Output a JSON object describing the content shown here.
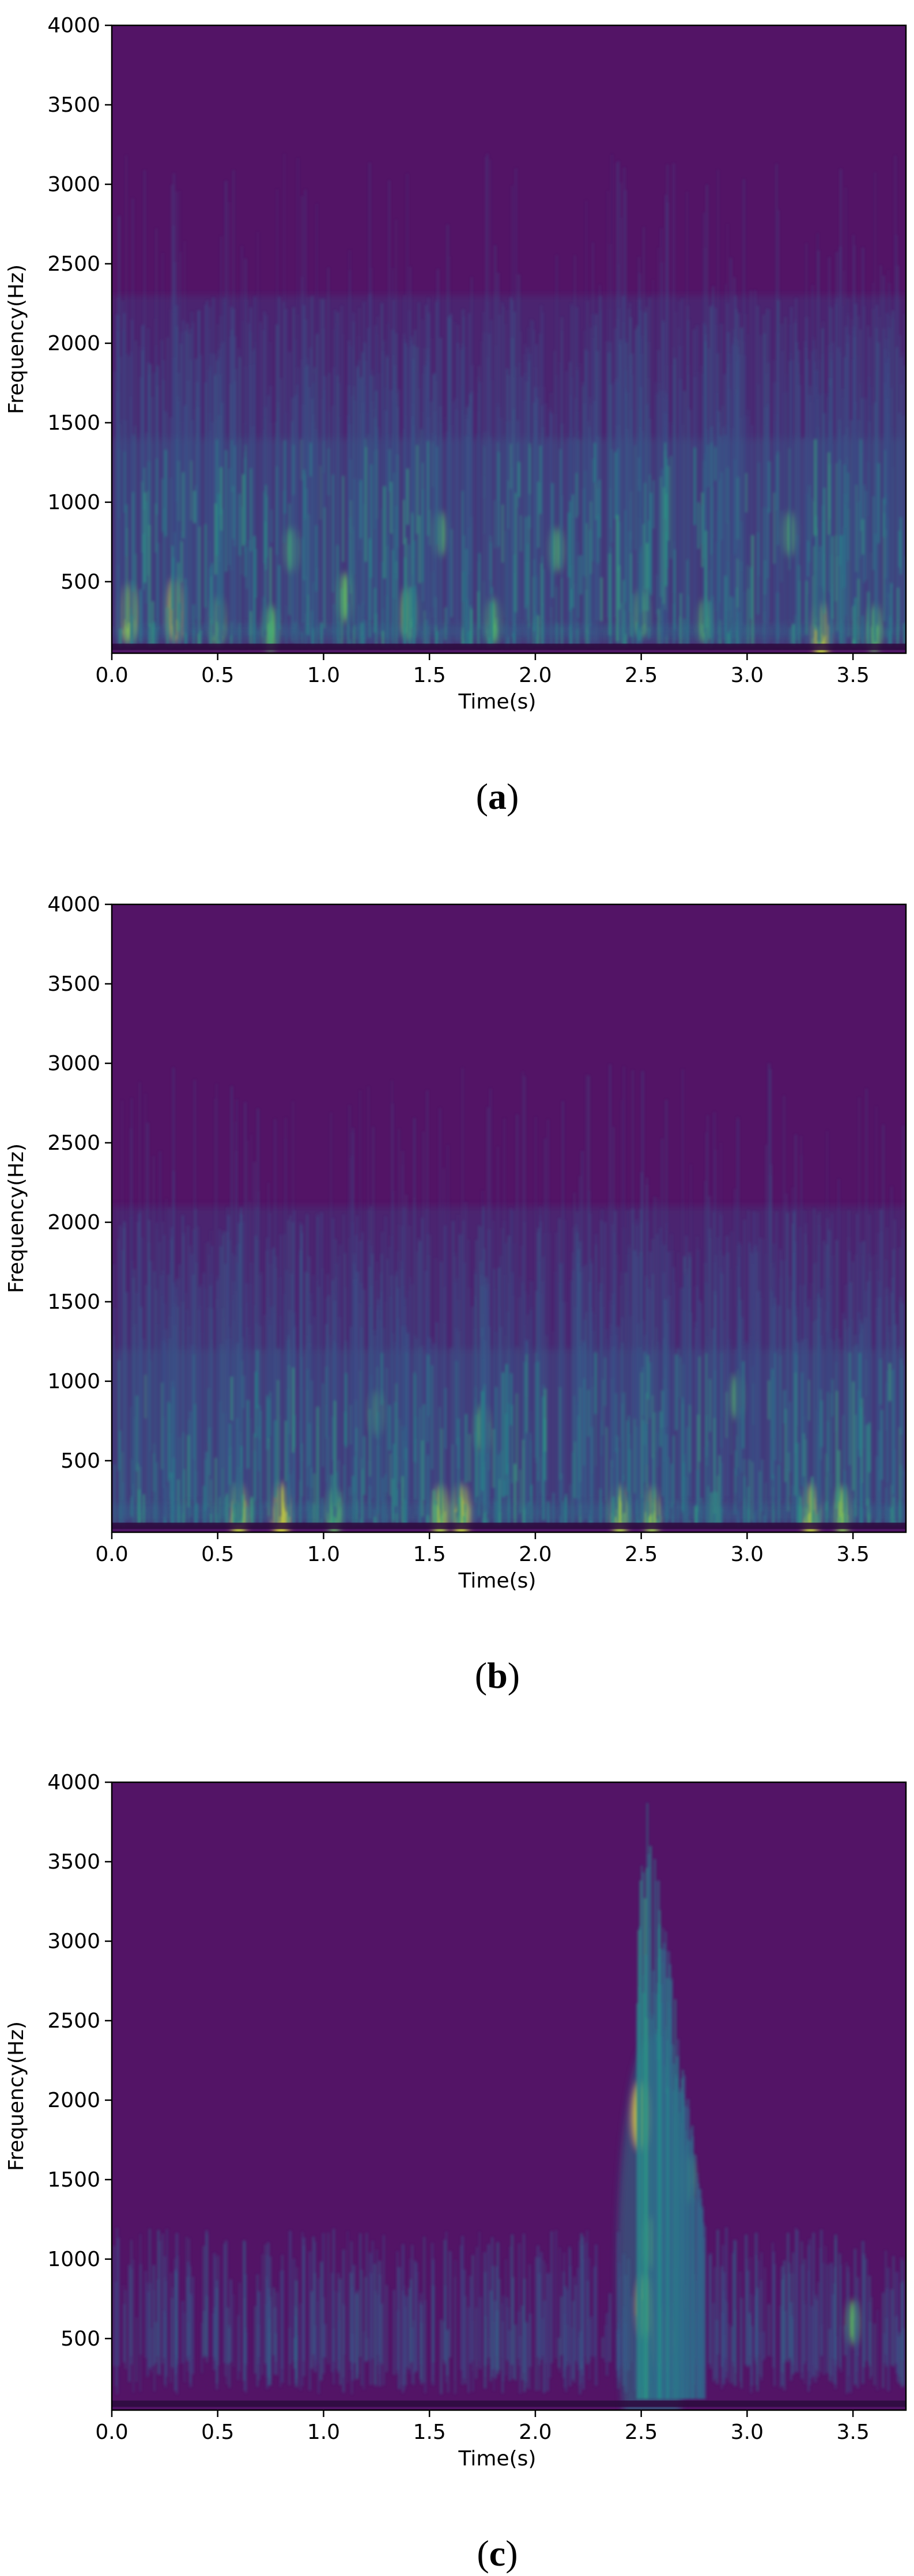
{
  "chart_data": [
    {
      "type": "heatmap",
      "panel_label": "a",
      "xlabel": "Time(s)",
      "ylabel": "Frequency(Hz)",
      "xlim": [
        0,
        3.75
      ],
      "ylim": [
        50,
        4000
      ],
      "x_ticks": [
        0.0,
        0.5,
        1.0,
        1.5,
        2.0,
        2.5,
        3.0,
        3.5
      ],
      "x_tick_labels": [
        "0.0",
        "0.5",
        "1.0",
        "1.5",
        "2.0",
        "2.5",
        "3.0",
        "3.5"
      ],
      "y_ticks": [
        500,
        1000,
        1500,
        2000,
        2500,
        3000,
        3500,
        4000
      ],
      "y_tick_labels": [
        "500",
        "1000",
        "1500",
        "2000",
        "2500",
        "3000",
        "3500",
        "4000"
      ],
      "colormap": "viridis",
      "background_color": "#531466",
      "energy_profile": {
        "description_of_mode": "broadband",
        "upper_extent_hz": 2300,
        "strong_band_hz": [
          150,
          1400
        ],
        "bright_spots": [
          {
            "t": 0.08,
            "f": 300,
            "i": 0.8
          },
          {
            "t": 0.3,
            "f": 320,
            "i": 0.9
          },
          {
            "t": 0.5,
            "f": 250,
            "i": 0.6
          },
          {
            "t": 0.75,
            "f": 200,
            "i": 0.55
          },
          {
            "t": 0.85,
            "f": 700,
            "i": 0.5
          },
          {
            "t": 1.1,
            "f": 400,
            "i": 0.6
          },
          {
            "t": 1.4,
            "f": 300,
            "i": 0.65
          },
          {
            "t": 1.55,
            "f": 800,
            "i": 0.5
          },
          {
            "t": 1.8,
            "f": 250,
            "i": 0.55
          },
          {
            "t": 2.1,
            "f": 700,
            "i": 0.5
          },
          {
            "t": 2.5,
            "f": 300,
            "i": 0.55
          },
          {
            "t": 2.8,
            "f": 250,
            "i": 0.5
          },
          {
            "t": 3.2,
            "f": 800,
            "i": 0.5
          },
          {
            "t": 3.35,
            "f": 170,
            "i": 0.85
          },
          {
            "t": 3.6,
            "f": 200,
            "i": 0.6
          }
        ]
      }
    },
    {
      "type": "heatmap",
      "panel_label": "b",
      "xlabel": "Time(s)",
      "ylabel": "Frequency(Hz)",
      "xlim": [
        0,
        3.75
      ],
      "ylim": [
        50,
        4000
      ],
      "x_ticks": [
        0.0,
        0.5,
        1.0,
        1.5,
        2.0,
        2.5,
        3.0,
        3.5
      ],
      "x_tick_labels": [
        "0.0",
        "0.5",
        "1.0",
        "1.5",
        "2.0",
        "2.5",
        "3.0",
        "3.5"
      ],
      "y_ticks": [
        500,
        1000,
        1500,
        2000,
        2500,
        3000,
        3500,
        4000
      ],
      "y_tick_labels": [
        "500",
        "1000",
        "1500",
        "2000",
        "2500",
        "3000",
        "3500",
        "4000"
      ],
      "colormap": "viridis",
      "background_color": "#531466",
      "energy_profile": {
        "description_of_mode": "broadband-low",
        "upper_extent_hz": 2100,
        "strong_band_hz": [
          120,
          1200
        ],
        "bright_spots": [
          {
            "t": 0.6,
            "f": 160,
            "i": 0.85
          },
          {
            "t": 0.8,
            "f": 160,
            "i": 0.9
          },
          {
            "t": 1.05,
            "f": 170,
            "i": 0.6
          },
          {
            "t": 1.25,
            "f": 800,
            "i": 0.5
          },
          {
            "t": 1.55,
            "f": 160,
            "i": 0.8
          },
          {
            "t": 1.65,
            "f": 160,
            "i": 0.85
          },
          {
            "t": 1.75,
            "f": 700,
            "i": 0.55
          },
          {
            "t": 2.4,
            "f": 160,
            "i": 0.8
          },
          {
            "t": 2.55,
            "f": 160,
            "i": 0.75
          },
          {
            "t": 3.3,
            "f": 160,
            "i": 0.85
          },
          {
            "t": 3.45,
            "f": 170,
            "i": 0.7
          },
          {
            "t": 2.95,
            "f": 900,
            "i": 0.5
          }
        ]
      }
    },
    {
      "type": "heatmap",
      "panel_label": "c",
      "xlabel": "Time(s)",
      "ylabel": "Frequency(Hz)",
      "xlim": [
        0,
        3.75
      ],
      "ylim": [
        50,
        4000
      ],
      "x_ticks": [
        0.0,
        0.5,
        1.0,
        1.5,
        2.0,
        2.5,
        3.0,
        3.5
      ],
      "x_tick_labels": [
        "0.0",
        "0.5",
        "1.0",
        "1.5",
        "2.0",
        "2.5",
        "3.0",
        "3.5"
      ],
      "y_ticks": [
        500,
        1000,
        1500,
        2000,
        2500,
        3000,
        3500,
        4000
      ],
      "y_tick_labels": [
        "500",
        "1000",
        "1500",
        "2000",
        "2500",
        "3000",
        "3500",
        "4000"
      ],
      "colormap": "viridis",
      "background_color": "#531466",
      "energy_profile": {
        "description_of_mode": "sparse-with-transient",
        "upper_extent_hz": 1200,
        "strong_band_hz": [
          200,
          1100
        ],
        "transient": {
          "t_start": 2.47,
          "t_end": 2.8,
          "f_max": 4000
        },
        "bright_spots": [
          {
            "t": 2.5,
            "f": 1900,
            "i": 1.0
          },
          {
            "t": 2.52,
            "f": 700,
            "i": 0.9
          },
          {
            "t": 2.6,
            "f": 500,
            "i": 0.95
          },
          {
            "t": 2.55,
            "f": 1100,
            "i": 0.7
          },
          {
            "t": 2.72,
            "f": 1500,
            "i": 0.6
          },
          {
            "t": 3.5,
            "f": 600,
            "i": 0.55
          }
        ]
      }
    }
  ]
}
